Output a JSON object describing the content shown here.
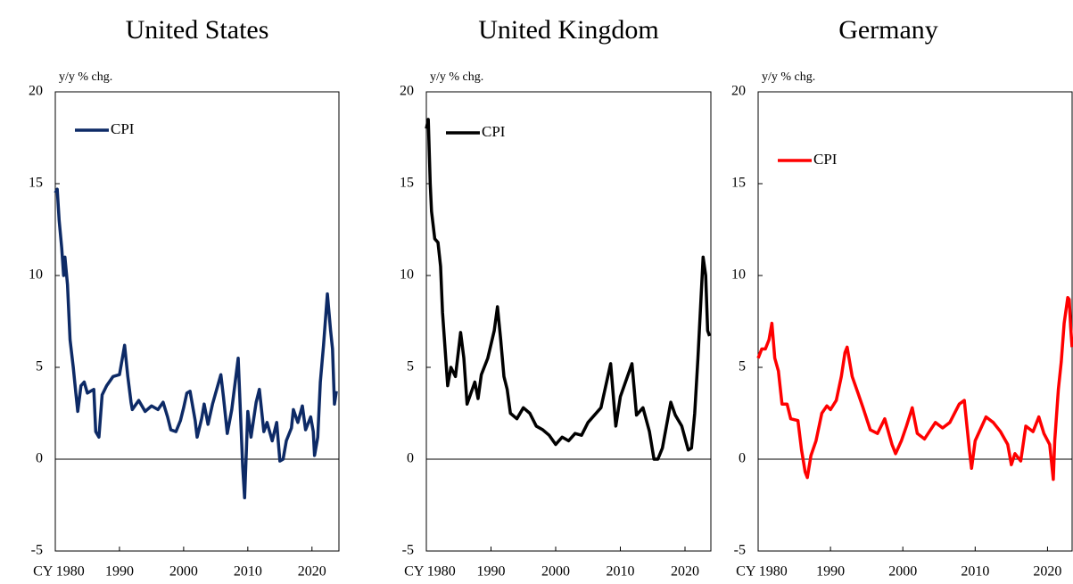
{
  "chart_data": [
    {
      "type": "line",
      "title": "United States",
      "y_label": "y/y % chg.",
      "x": [
        1980,
        1980.3,
        1980.6,
        1981,
        1981.3,
        1981.5,
        1981.9,
        1982.3,
        1982.8,
        1983.2,
        1983.5,
        1984,
        1984.5,
        1985,
        1985.5,
        1986,
        1986.3,
        1986.8,
        1987.3,
        1988,
        1989,
        1990,
        1990.8,
        1991.3,
        1991.8,
        1992,
        1993,
        1994,
        1995,
        1996,
        1996.8,
        1997.5,
        1998,
        1998.8,
        1999.5,
        2000,
        2000.5,
        2001,
        2001.8,
        2002.1,
        2002.8,
        2003.2,
        2003.8,
        2004.5,
        2005.8,
        2006.2,
        2006.8,
        2007.5,
        2008.5,
        2009.2,
        2009.5,
        2010,
        2010.5,
        2011.3,
        2011.8,
        2012.5,
        2013,
        2013.8,
        2014.5,
        2015,
        2015.5,
        2016,
        2016.8,
        2017.1,
        2017.8,
        2018.5,
        2019,
        2019.8,
        2020.2,
        2020.4,
        2020.9,
        2021.3,
        2021.8,
        2022.4,
        2022.9,
        2023.2,
        2023.5,
        2023.8
      ],
      "series": [
        {
          "name": "CPI",
          "color": "#0d2a66",
          "values": [
            14.5,
            14.7,
            13,
            11.5,
            10,
            11,
            9.5,
            6.5,
            5,
            3.6,
            2.6,
            4,
            4.2,
            3.6,
            3.7,
            3.8,
            1.5,
            1.2,
            3.5,
            4,
            4.5,
            4.6,
            6.2,
            4.5,
            3.1,
            2.7,
            3.2,
            2.6,
            2.9,
            2.7,
            3.1,
            2.3,
            1.6,
            1.5,
            2.1,
            2.8,
            3.6,
            3.7,
            2.1,
            1.2,
            2.2,
            3,
            1.9,
            3,
            4.6,
            3.4,
            1.4,
            2.7,
            5.5,
            -0.4,
            -2.1,
            2.6,
            1.2,
            3.1,
            3.8,
            1.5,
            2,
            1,
            2,
            -0.1,
            0,
            1,
            1.7,
            2.7,
            2,
            2.9,
            1.6,
            2.3,
            1.5,
            0.2,
            1.2,
            4.2,
            6.2,
            9,
            7,
            6,
            3,
            3.7
          ]
        }
      ],
      "xlim": [
        1980,
        2024.2
      ],
      "xticks": [
        {
          "value": 1980,
          "label": "CY 1980"
        },
        1990,
        2000,
        2010,
        2020
      ],
      "ylim": [
        -5,
        20
      ],
      "yticks": [
        20,
        15,
        10,
        5,
        0,
        -5
      ],
      "zero_line": true
    },
    {
      "type": "line",
      "title": "United Kingdom",
      "y_label": "y/y % chg.",
      "x": [
        1980,
        1980.3,
        1980.6,
        1980.8,
        1981.3,
        1981.8,
        1982.2,
        1982.5,
        1983,
        1983.3,
        1983.8,
        1984.5,
        1985.3,
        1985.8,
        1986.3,
        1986.8,
        1987.5,
        1988,
        1988.5,
        1989.5,
        1990.5,
        1991,
        1991.5,
        1992,
        1992.5,
        1993,
        1994,
        1995,
        1996,
        1997,
        1998,
        1999,
        2000,
        2001,
        2002,
        2003,
        2004,
        2005,
        2006,
        2007,
        2008.5,
        2009.3,
        2010,
        2011.8,
        2012.5,
        2013.5,
        2014.5,
        2015.2,
        2015.8,
        2016.5,
        2017.8,
        2018.5,
        2019.5,
        2020.5,
        2021,
        2021.5,
        2022,
        2022.8,
        2023.2,
        2023.5,
        2023.8
      ],
      "series": [
        {
          "name": "CPI",
          "color": "#000000",
          "values": [
            18,
            18.5,
            15,
            13.5,
            12,
            11.8,
            10.5,
            8,
            5.5,
            4,
            5,
            4.5,
            6.9,
            5.5,
            3,
            3.5,
            4.2,
            3.3,
            4.6,
            5.5,
            7,
            8.3,
            6.5,
            4.5,
            3.8,
            2.5,
            2.2,
            2.8,
            2.5,
            1.8,
            1.6,
            1.3,
            0.8,
            1.2,
            1,
            1.4,
            1.3,
            2,
            2.4,
            2.8,
            5.2,
            1.8,
            3.4,
            5.2,
            2.4,
            2.8,
            1.5,
            0,
            0,
            0.6,
            3.1,
            2.4,
            1.8,
            0.5,
            0.6,
            2.5,
            5.5,
            11,
            10,
            7,
            6.7
          ]
        }
      ],
      "xlim": [
        1980,
        2024
      ],
      "xticks": [
        {
          "value": 1980,
          "label": "CY 1980"
        },
        1990,
        2000,
        2010,
        2020
      ],
      "ylim": [
        -5,
        20
      ],
      "yticks": [
        20,
        15,
        10,
        5,
        0,
        -5
      ],
      "zero_line": true
    },
    {
      "type": "line",
      "title": "Germany",
      "y_label": "y/y % chg.",
      "x": [
        1980,
        1980.5,
        1981,
        1981.5,
        1981.9,
        1982.3,
        1982.8,
        1983.3,
        1984,
        1984.5,
        1985.5,
        1986,
        1986.5,
        1986.8,
        1987.3,
        1988,
        1988.8,
        1989.5,
        1990,
        1990.8,
        1991.5,
        1992,
        1992.3,
        1993,
        1993.8,
        1994.5,
        1995.5,
        1996.5,
        1997.5,
        1998.5,
        1999,
        1999.8,
        2000.5,
        2001.3,
        2002,
        2003,
        2004.5,
        2005.5,
        2006.5,
        2007.8,
        2008.5,
        2009.2,
        2009.5,
        2010,
        2011.5,
        2012.5,
        2013.5,
        2014.5,
        2015,
        2015.5,
        2016.3,
        2017,
        2018,
        2018.8,
        2019.5,
        2020.3,
        2020.8,
        2021,
        2021.5,
        2021.9,
        2022.3,
        2022.8,
        2023,
        2023.2,
        2023.4
      ],
      "series": [
        {
          "name": "CPI",
          "color": "#ff0000",
          "values": [
            5.5,
            6,
            6,
            6.5,
            7.4,
            5.5,
            4.8,
            3,
            3,
            2.2,
            2.1,
            0.5,
            -0.7,
            -1,
            0.2,
            1,
            2.5,
            2.9,
            2.7,
            3.2,
            4.5,
            5.8,
            6.1,
            4.5,
            3.6,
            2.8,
            1.6,
            1.4,
            2.2,
            0.8,
            0.3,
            1,
            1.8,
            2.8,
            1.4,
            1.1,
            2,
            1.7,
            2,
            3,
            3.2,
            0.5,
            -0.5,
            1,
            2.3,
            2,
            1.5,
            0.8,
            -0.3,
            0.3,
            -0.1,
            1.8,
            1.5,
            2.3,
            1.4,
            0.8,
            -1.1,
            1,
            3.8,
            5.3,
            7.4,
            8.8,
            8.7,
            7.2,
            6.1
          ]
        }
      ],
      "xlim": [
        1980,
        2023.4
      ],
      "xticks": [
        {
          "value": 1980,
          "label": "CY 1980"
        },
        1990,
        2000,
        2010,
        2020
      ],
      "ylim": [
        -5,
        20
      ],
      "yticks": [
        20,
        15,
        10,
        5,
        0,
        -5
      ],
      "zero_line": true
    }
  ]
}
